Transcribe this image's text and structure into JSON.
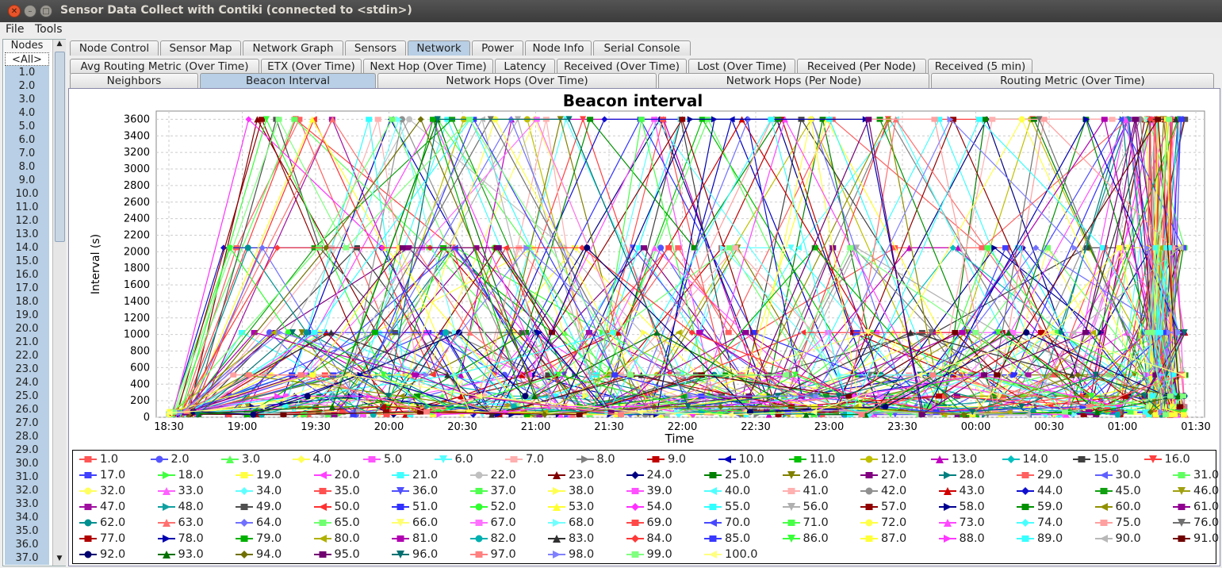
{
  "window": {
    "title": "Sensor Data Collect with Contiki (connected to <stdin>)"
  },
  "menu": {
    "file": "File",
    "tools": "Tools"
  },
  "sidebar": {
    "header": "Nodes",
    "items": [
      "<All>",
      "1.0",
      "2.0",
      "3.0",
      "4.0",
      "5.0",
      "6.0",
      "7.0",
      "8.0",
      "9.0",
      "10.0",
      "11.0",
      "12.0",
      "13.0",
      "14.0",
      "15.0",
      "16.0",
      "17.0",
      "18.0",
      "19.0",
      "20.0",
      "21.0",
      "22.0",
      "23.0",
      "24.0",
      "25.0",
      "26.0",
      "27.0",
      "28.0",
      "29.0",
      "30.0",
      "31.0",
      "32.0",
      "33.0",
      "34.0",
      "35.0",
      "36.0",
      "37.0"
    ]
  },
  "tabs_main": [
    "Node Control",
    "Sensor Map",
    "Network Graph",
    "Sensors",
    "Network",
    "Power",
    "Node Info",
    "Serial Console"
  ],
  "tabs_main_active": 4,
  "tabs_sub1": [
    "Avg Routing Metric (Over Time)",
    "ETX (Over Time)",
    "Next Hop (Over Time)",
    "Latency",
    "Received (Over Time)",
    "Lost (Over Time)",
    "Received (Per Node)",
    "Received (5 min)"
  ],
  "tabs_sub2": [
    "Neighbors",
    "Beacon Interval",
    "Network Hops (Over Time)",
    "Network Hops (Per Node)",
    "Routing Metric (Over Time)"
  ],
  "tabs_sub2_active": 1,
  "chart_data": {
    "type": "line",
    "title": "Beacon interval",
    "xlabel": "Time",
    "ylabel": "Interval (s)",
    "ylim": [
      0,
      3700
    ],
    "yticks": [
      0,
      200,
      400,
      600,
      800,
      1000,
      1200,
      1400,
      1600,
      1800,
      2000,
      2200,
      2400,
      2600,
      2800,
      3000,
      3200,
      3400,
      3600
    ],
    "xticks": [
      "18:30",
      "19:00",
      "19:30",
      "20:00",
      "20:30",
      "21:00",
      "21:30",
      "22:00",
      "22:30",
      "23:00",
      "23:30",
      "00:00",
      "00:30",
      "01:00",
      "01:30"
    ],
    "grid": true,
    "legend_position": "bottom",
    "series_names": [
      "1.0",
      "2.0",
      "3.0",
      "4.0",
      "5.0",
      "6.0",
      "7.0",
      "8.0",
      "9.0",
      "10.0",
      "11.0",
      "12.0",
      "13.0",
      "14.0",
      "15.0",
      "16.0",
      "17.0",
      "18.0",
      "19.0",
      "20.0",
      "21.0",
      "22.0",
      "23.0",
      "24.0",
      "25.0",
      "26.0",
      "27.0",
      "28.0",
      "29.0",
      "30.0",
      "31.0",
      "32.0",
      "33.0",
      "34.0",
      "35.0",
      "36.0",
      "37.0",
      "38.0",
      "39.0",
      "40.0",
      "41.0",
      "42.0",
      "43.0",
      "44.0",
      "45.0",
      "46.0",
      "47.0",
      "48.0",
      "49.0",
      "50.0",
      "51.0",
      "52.0",
      "53.0",
      "54.0",
      "55.0",
      "56.0",
      "57.0",
      "58.0",
      "59.0",
      "60.0",
      "61.0",
      "62.0",
      "63.0",
      "64.0",
      "65.0",
      "66.0",
      "67.0",
      "68.0",
      "69.0",
      "70.0",
      "71.0",
      "72.0",
      "73.0",
      "74.0",
      "75.0",
      "76.0",
      "77.0",
      "78.0",
      "79.0",
      "80.0",
      "81.0",
      "82.0",
      "83.0",
      "84.0",
      "85.0",
      "86.0",
      "87.0",
      "88.0",
      "89.0",
      "90.0",
      "91.0",
      "92.0",
      "93.0",
      "94.0",
      "95.0",
      "96.0",
      "97.0",
      "98.0",
      "99.0",
      "100.0"
    ],
    "series_colors": [
      "#ff5555",
      "#5555ff",
      "#55ff55",
      "#ffff55",
      "#ff55ff",
      "#55ffff",
      "#ffafaf",
      "#808080",
      "#c00000",
      "#0000c0",
      "#00c000",
      "#c0c000",
      "#c000c0",
      "#00c0c0",
      "#404040",
      "#ff4040",
      "#4040ff",
      "#40ff40",
      "#ffff40",
      "#ff40ff",
      "#40ffff",
      "#c0c0c0",
      "#800000",
      "#000080",
      "#008000",
      "#808000",
      "#800080",
      "#008080",
      "#ff6060",
      "#6060ff",
      "#60ff60",
      "#ffff60",
      "#ff60ff",
      "#60ffff",
      "#ff5050",
      "#5050ff",
      "#50ff50",
      "#ffff50",
      "#ff50ff",
      "#50ffff",
      "#ffb0b0",
      "#909090",
      "#d00000",
      "#1010d0",
      "#10a010",
      "#a0a010",
      "#a010a0",
      "#10a0a0",
      "#505050",
      "#ff3030",
      "#3030ff",
      "#30ff30",
      "#ffff30",
      "#ff30ff",
      "#30ffff",
      "#b0b0b0",
      "#900000",
      "#000090",
      "#009000",
      "#909000",
      "#900090",
      "#009090",
      "#ff7070",
      "#7070ff",
      "#70ff70",
      "#ffff70",
      "#ff70ff",
      "#70ffff",
      "#ff4848",
      "#4848ff",
      "#48ff48",
      "#ffff48",
      "#ff48ff",
      "#48ffff",
      "#ffa0a0",
      "#707070",
      "#b00000",
      "#0000b0",
      "#00b000",
      "#b0b000",
      "#b000b0",
      "#00b0b0",
      "#303030",
      "#ff3838",
      "#3838ff",
      "#38ff38",
      "#ffff38",
      "#ff38ff",
      "#38ffff",
      "#b8b8b8",
      "#700000",
      "#000070",
      "#007000",
      "#707000",
      "#700070",
      "#007070",
      "#ff8080",
      "#8080ff",
      "#80ff80",
      "#ffff80"
    ],
    "marker_shapes": [
      "square",
      "circle",
      "triangle",
      "diamond",
      "rect",
      "triangle-down",
      "rect",
      "triangle-right",
      "rect",
      "triangle-left"
    ],
    "value_levels": [
      3600,
      2048,
      1024,
      512,
      256,
      128,
      64,
      32
    ]
  }
}
